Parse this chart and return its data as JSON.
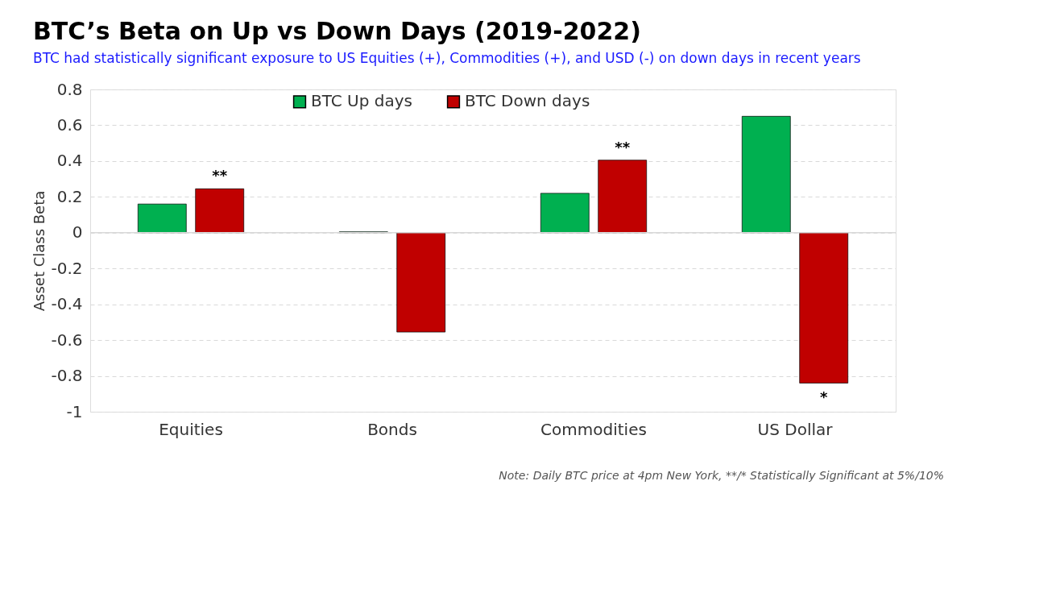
{
  "chart_data": {
    "type": "bar",
    "title": "BTC’s Beta on Up vs Down Days (2019-2022)",
    "subtitle": "BTC had statistically significant exposure to US Equities (+), Commodities (+), and USD (-) on down days in recent years",
    "ylabel": "Asset Class Beta",
    "categories": [
      "Equities",
      "Bonds",
      "Commodities",
      "US Dollar"
    ],
    "series": [
      {
        "name": "BTC Up days",
        "color": "#00b050",
        "values": [
          0.16,
          0.005,
          0.22,
          0.65
        ]
      },
      {
        "name": "BTC Down days",
        "color": "#c00000",
        "values": [
          0.245,
          -0.555,
          0.405,
          -0.84
        ],
        "value_labels": [
          "**",
          null,
          "**",
          "*"
        ]
      }
    ],
    "ylim": [
      -1,
      0.8
    ],
    "yticks": [
      -1,
      -0.8,
      -0.6,
      -0.4,
      -0.2,
      0,
      0.2,
      0.4,
      0.6,
      0.8
    ],
    "grid": "y",
    "legend": "top",
    "ref_lines": [
      {
        "axis": "y",
        "value": 0,
        "color": "#d9d9d9"
      }
    ],
    "annotations": [
      "Note: Daily BTC price at 4pm New York, **/* Statistically Significant at 5%/10%"
    ]
  }
}
